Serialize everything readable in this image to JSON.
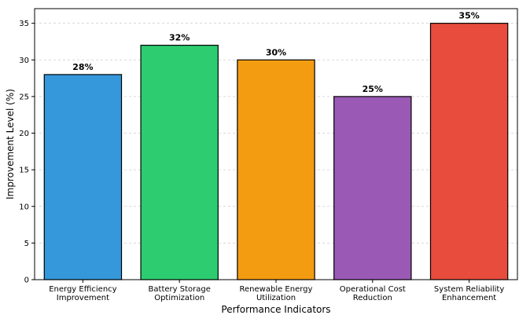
{
  "chart_data": {
    "type": "bar",
    "categories": [
      [
        "Energy Efficiency",
        "Improvement"
      ],
      [
        "Battery Storage",
        "Optimization"
      ],
      [
        "Renewable Energy",
        "Utilization"
      ],
      [
        "Operational Cost",
        "Reduction"
      ],
      [
        "System Reliability",
        "Enhancement"
      ]
    ],
    "values": [
      28,
      32,
      30,
      25,
      35
    ],
    "data_labels": [
      "28%",
      "32%",
      "30%",
      "25%",
      "35%"
    ],
    "colors": [
      "#3498db",
      "#2ecc71",
      "#f39c12",
      "#9b59b6",
      "#e74c3c"
    ],
    "title": "",
    "xlabel": "Performance Indicators",
    "ylabel": "Improvement Level (%)",
    "ylim": [
      0,
      37
    ],
    "yticks": [
      0,
      5,
      10,
      15,
      20,
      25,
      30,
      35
    ],
    "grid": "horizontal dashed",
    "legend": "none"
  }
}
